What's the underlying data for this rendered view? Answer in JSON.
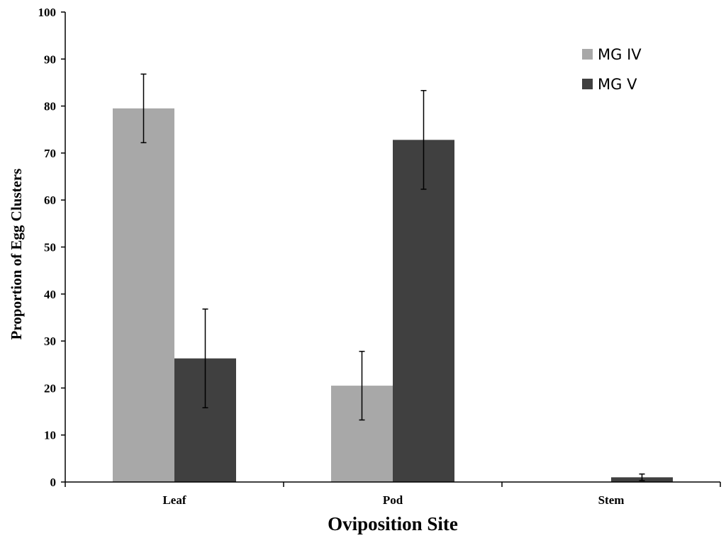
{
  "chart_data": {
    "type": "bar",
    "title": "",
    "xlabel": "Oviposition Site",
    "ylabel": "Proportion of Egg Clusters",
    "categories": [
      "Leaf",
      "Pod",
      "Stem"
    ],
    "ylim": [
      0,
      100
    ],
    "yticks": [
      0,
      10,
      20,
      30,
      40,
      50,
      60,
      70,
      80,
      90,
      100
    ],
    "grid": false,
    "legend_position": "top-right",
    "series": [
      {
        "name": "MG IV",
        "color": "#a8a8a8",
        "values": [
          79.5,
          20.5,
          0
        ],
        "errors": [
          7.3,
          7.3,
          0
        ]
      },
      {
        "name": "MG V",
        "color": "#404040",
        "values": [
          26.3,
          72.8,
          1.0
        ],
        "errors": [
          10.5,
          10.5,
          0.7
        ]
      }
    ]
  }
}
